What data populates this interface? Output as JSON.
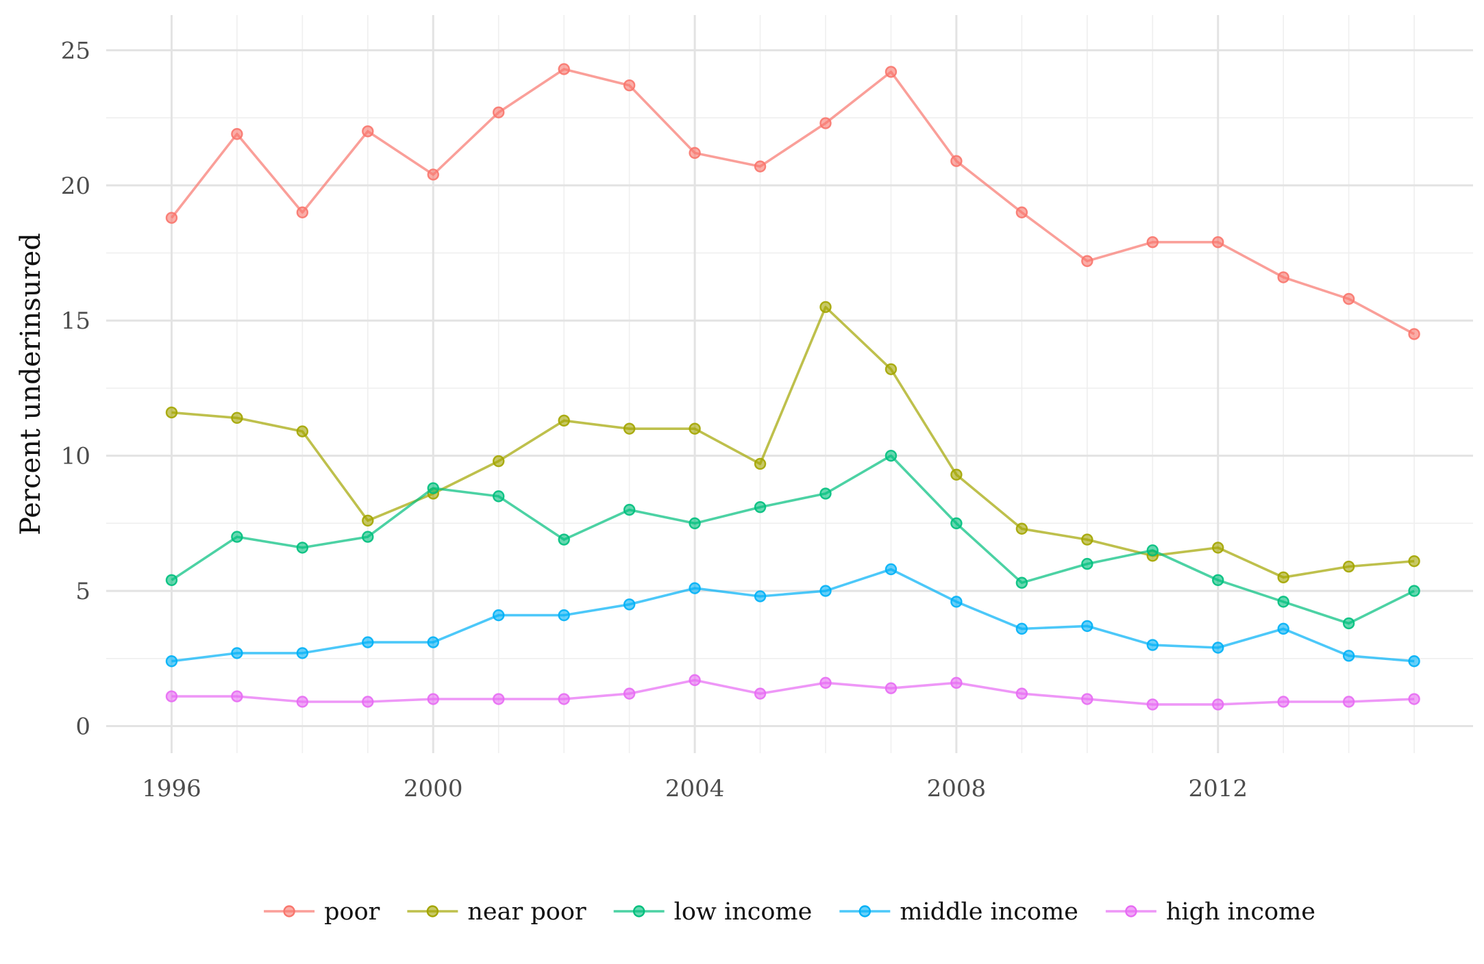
{
  "chart_data": {
    "type": "line",
    "title": "",
    "xlabel": "",
    "ylabel": "Percent underinsured",
    "x": [
      1996,
      1997,
      1998,
      1999,
      2000,
      2001,
      2002,
      2003,
      2004,
      2005,
      2006,
      2007,
      2008,
      2009,
      2010,
      2011,
      2012,
      2013,
      2014,
      2015
    ],
    "xlim": [
      1995.0,
      2015.9
    ],
    "ylim": [
      -1.0,
      26.3
    ],
    "x_ticks": [
      1996,
      2000,
      2004,
      2008,
      2012
    ],
    "x_tick_labels": [
      "1996",
      "2000",
      "2004",
      "2008",
      "2012"
    ],
    "y_ticks": [
      0,
      5,
      10,
      15,
      20,
      25
    ],
    "y_tick_labels": [
      "0",
      "5",
      "10",
      "15",
      "20",
      "25"
    ],
    "grid": true,
    "legend_position": "bottom",
    "series": [
      {
        "name": "poor",
        "color": "#F8766D",
        "values": [
          18.8,
          21.9,
          19.0,
          22.0,
          20.4,
          22.7,
          24.3,
          23.7,
          21.2,
          20.7,
          22.3,
          24.2,
          20.9,
          19.0,
          17.2,
          17.9,
          17.9,
          16.6,
          15.8,
          14.5
        ]
      },
      {
        "name": "near poor",
        "color": "#A3A500",
        "values": [
          11.6,
          11.4,
          10.9,
          7.6,
          8.6,
          9.8,
          11.3,
          11.0,
          11.0,
          9.7,
          15.5,
          13.2,
          9.3,
          7.3,
          6.9,
          6.3,
          6.6,
          5.5,
          5.9,
          6.1
        ]
      },
      {
        "name": "low income",
        "color": "#00BF7D",
        "values": [
          5.4,
          7.0,
          6.6,
          7.0,
          8.8,
          8.5,
          6.9,
          8.0,
          7.5,
          8.1,
          8.6,
          10.0,
          7.5,
          5.3,
          6.0,
          6.5,
          5.4,
          4.6,
          3.8,
          5.0
        ]
      },
      {
        "name": "middle income",
        "color": "#00B0F6",
        "values": [
          2.4,
          2.7,
          2.7,
          3.1,
          3.1,
          4.1,
          4.1,
          4.5,
          5.1,
          4.8,
          5.0,
          5.8,
          4.6,
          3.6,
          3.7,
          3.0,
          2.9,
          3.6,
          2.6,
          2.4
        ]
      },
      {
        "name": "high income",
        "color": "#E76BF3",
        "values": [
          1.1,
          1.1,
          0.9,
          0.9,
          1.0,
          1.0,
          1.0,
          1.2,
          1.7,
          1.2,
          1.6,
          1.4,
          1.6,
          1.2,
          1.0,
          0.8,
          0.8,
          0.9,
          0.9,
          1.0
        ]
      }
    ]
  }
}
